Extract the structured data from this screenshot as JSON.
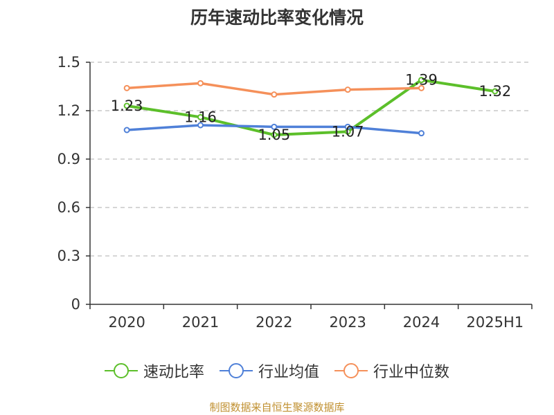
{
  "chart_data": {
    "type": "line",
    "title": "历年速动比率变化情况",
    "categories": [
      "2020",
      "2021",
      "2022",
      "2023",
      "2024",
      "2025H1"
    ],
    "ylim": [
      0,
      1.5
    ],
    "yticks": [
      "0",
      "0.3",
      "0.6",
      "0.9",
      "1.2",
      "1.5"
    ],
    "ytick_values": [
      0,
      0.3,
      0.6,
      0.9,
      1.2,
      1.5
    ],
    "grid": true,
    "legend_position": "bottom",
    "series": [
      {
        "name": "速动比率",
        "color": "#5cbf2a",
        "values": [
          1.23,
          1.16,
          1.05,
          1.07,
          1.39,
          1.32
        ],
        "labels": [
          "1.23",
          "1.16",
          "1.05",
          "1.07",
          "1.39",
          "1.32"
        ]
      },
      {
        "name": "行业均值",
        "color": "#4f80d8",
        "values": [
          1.08,
          1.11,
          1.1,
          1.1,
          1.06,
          null
        ]
      },
      {
        "name": "行业中位数",
        "color": "#f5905a",
        "values": [
          1.34,
          1.37,
          1.3,
          1.33,
          1.34,
          null
        ]
      }
    ]
  },
  "source_note": "制图数据来自恒生聚源数据库"
}
